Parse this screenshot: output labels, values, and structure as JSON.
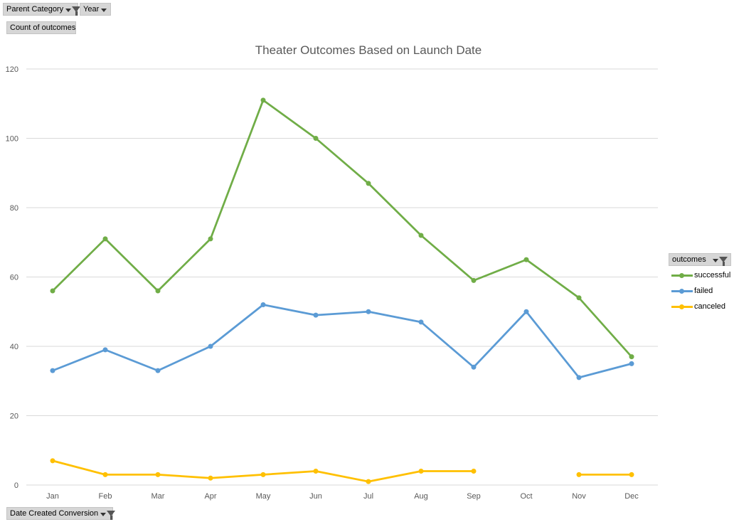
{
  "filters": {
    "parent_category": "Parent Category",
    "year": "Year",
    "values": "Count of outcomes",
    "axis_field": "Date Created Conversion",
    "legend_field": "outcomes"
  },
  "colors": {
    "successful": "#70ad47",
    "failed": "#5b9bd5",
    "canceled": "#ffc000",
    "grid": "#d9d9d9",
    "axis_text": "#595959"
  },
  "chart_data": {
    "type": "line",
    "title": "Theater Outcomes Based on Launch Date",
    "xlabel": "",
    "ylabel": "",
    "categories": [
      "Jan",
      "Feb",
      "Mar",
      "Apr",
      "May",
      "Jun",
      "Jul",
      "Aug",
      "Sep",
      "Oct",
      "Nov",
      "Dec"
    ],
    "ylim": [
      0,
      120
    ],
    "yticks": [
      0,
      20,
      40,
      60,
      80,
      100,
      120
    ],
    "grid": true,
    "legend_position": "right",
    "series": [
      {
        "name": "successful",
        "values": [
          56,
          71,
          56,
          71,
          111,
          100,
          87,
          72,
          59,
          65,
          54,
          37
        ]
      },
      {
        "name": "failed",
        "values": [
          33,
          39,
          33,
          40,
          52,
          49,
          50,
          47,
          34,
          50,
          31,
          35
        ]
      },
      {
        "name": "canceled",
        "values": [
          7,
          3,
          3,
          2,
          3,
          4,
          1,
          4,
          4,
          null,
          3,
          3
        ]
      }
    ]
  }
}
